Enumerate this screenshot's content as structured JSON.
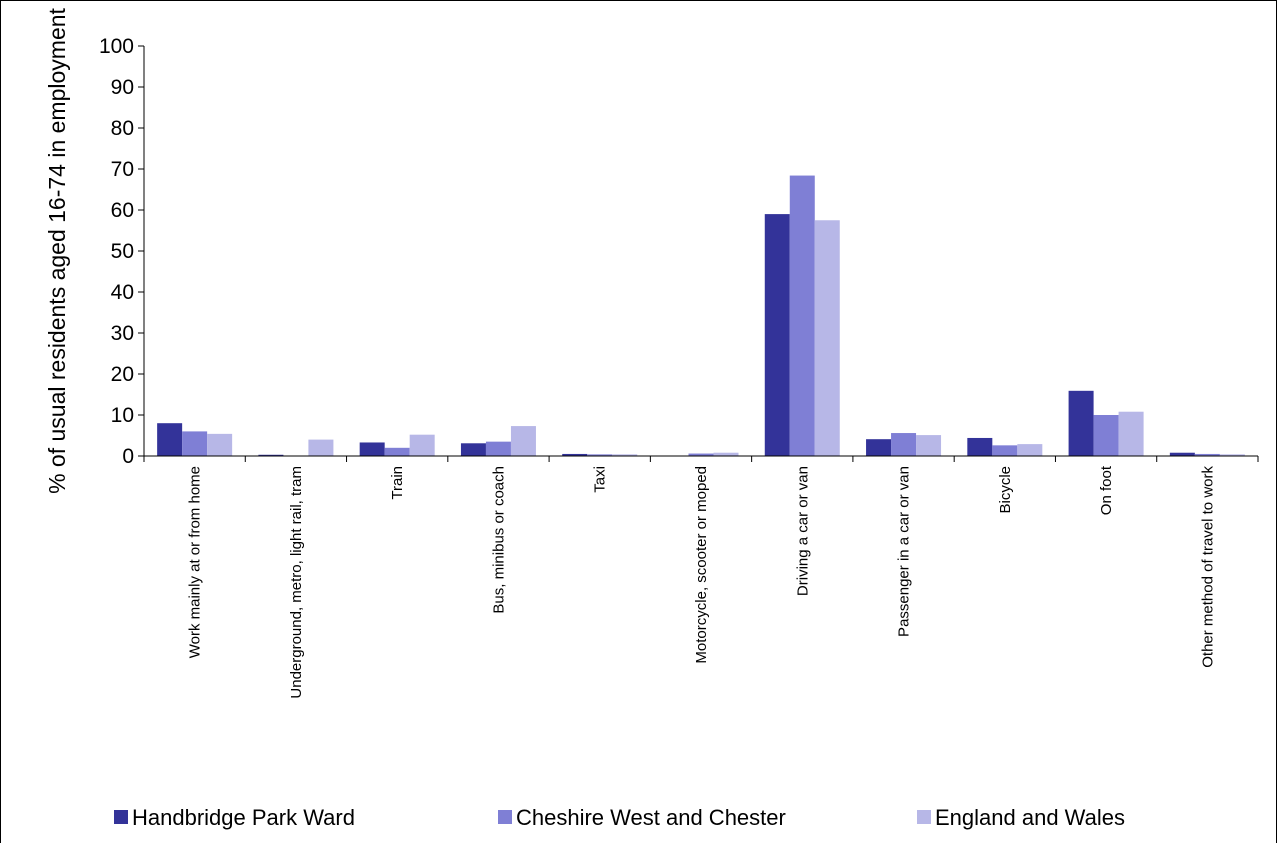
{
  "chart_data": {
    "type": "bar",
    "title": "",
    "xlabel": "",
    "ylabel": "% of usual residents aged 16-74 in employment",
    "ylim": [
      0,
      100
    ],
    "yticks": [
      0,
      10,
      20,
      30,
      40,
      50,
      60,
      70,
      80,
      90,
      100
    ],
    "grid": false,
    "legend_position": "bottom",
    "categories": [
      "Work mainly at or from home",
      "Underground, metro, light rail, tram",
      "Train",
      "Bus, minibus or coach",
      "Taxi",
      "Motorcycle, scooter or moped",
      "Driving a car or van",
      "Passenger in a car or van",
      "Bicycle",
      "On foot",
      "Other method of travel to work"
    ],
    "series": [
      {
        "name": "Handbridge Park Ward",
        "color": "#333399",
        "values": [
          8.0,
          0.3,
          3.3,
          3.1,
          0.5,
          0.1,
          59.0,
          4.1,
          4.4,
          15.9,
          0.8
        ]
      },
      {
        "name": "Cheshire West and Chester",
        "color": "#7f7fd5",
        "values": [
          6.0,
          0.1,
          2.0,
          3.5,
          0.4,
          0.6,
          68.4,
          5.6,
          2.6,
          10.0,
          0.5
        ]
      },
      {
        "name": "England and Wales",
        "color": "#b7b7e7",
        "values": [
          5.4,
          4.0,
          5.2,
          7.3,
          0.4,
          0.8,
          57.5,
          5.1,
          2.9,
          10.8,
          0.4
        ]
      }
    ]
  }
}
